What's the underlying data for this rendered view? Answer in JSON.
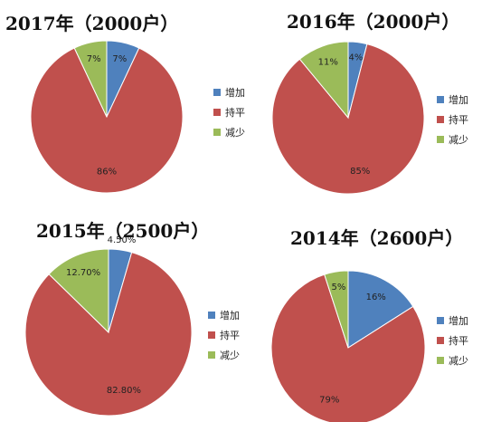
{
  "chart_data": [
    {
      "type": "pie",
      "title": "2017年（2000户）",
      "categories": [
        "增加",
        "持平",
        "减少"
      ],
      "values": [
        7,
        86,
        7
      ],
      "data_labels": [
        "7%",
        "86%",
        "7%"
      ],
      "colors": [
        "#4F81BD",
        "#C0504D",
        "#9BBB59"
      ],
      "legend_position": "right"
    },
    {
      "type": "pie",
      "title": "2016年（2000户）",
      "categories": [
        "增加",
        "持平",
        "减少"
      ],
      "values": [
        4,
        85,
        11
      ],
      "data_labels": [
        "4%",
        "85%",
        "11%"
      ],
      "colors": [
        "#4F81BD",
        "#C0504D",
        "#9BBB59"
      ],
      "legend_position": "right"
    },
    {
      "type": "pie",
      "title": "2015年（2500户）",
      "categories": [
        "增加",
        "持平",
        "减少"
      ],
      "values": [
        4.5,
        82.8,
        12.7
      ],
      "data_labels": [
        "4.50%",
        "82.80%",
        "12.70%"
      ],
      "colors": [
        "#4F81BD",
        "#C0504D",
        "#9BBB59"
      ],
      "legend_position": "right"
    },
    {
      "type": "pie",
      "title": "2014年（2600户）",
      "categories": [
        "增加",
        "持平",
        "减少"
      ],
      "values": [
        16,
        79,
        5
      ],
      "data_labels": [
        "16%",
        "79%",
        "5%"
      ],
      "colors": [
        "#4F81BD",
        "#C0504D",
        "#9BBB59"
      ],
      "legend_position": "right"
    }
  ]
}
